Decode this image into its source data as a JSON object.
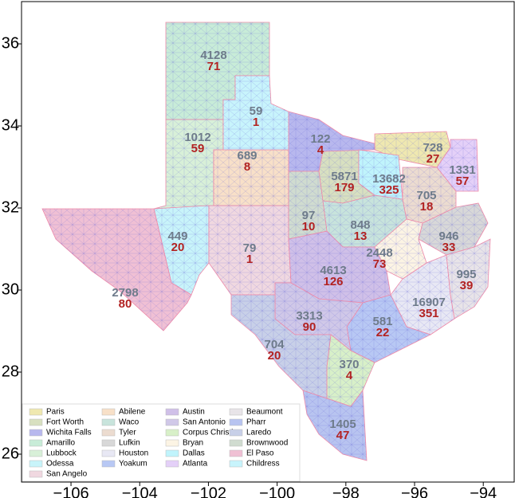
{
  "map": {
    "xlim": [
      -107.44,
      -93.1
    ],
    "ylim": [
      25.32,
      37.03
    ],
    "xticks": [
      {
        "value": -106,
        "label": "−106"
      },
      {
        "value": -104,
        "label": "−104"
      },
      {
        "value": -102,
        "label": "−102"
      },
      {
        "value": -100,
        "label": "−100"
      },
      {
        "value": -98,
        "label": "−98"
      },
      {
        "value": -96,
        "label": "−96"
      },
      {
        "value": -94,
        "label": "−94"
      }
    ],
    "yticks": [
      26,
      28,
      30,
      32,
      34,
      36
    ],
    "districts": [
      {
        "name": "Paris",
        "color": "#efe8b0",
        "values": [
          728,
          27
        ]
      },
      {
        "name": "Fort Worth",
        "color": "#d8e0c0",
        "values": [
          5871,
          179
        ]
      },
      {
        "name": "Wichita Falls",
        "color": "#b8b8ee",
        "values": [
          122,
          4
        ]
      },
      {
        "name": "Amarillo",
        "color": "#c8ecd8",
        "values": [
          4128,
          71
        ]
      },
      {
        "name": "Lubbock",
        "color": "#d8f0d8",
        "values": [
          1012,
          59
        ]
      },
      {
        "name": "Odessa",
        "color": "#c8f4fa",
        "values": [
          449,
          20
        ]
      },
      {
        "name": "San Angelo",
        "color": "#f0d8e0",
        "values": [
          79,
          1
        ]
      },
      {
        "name": "Abilene",
        "color": "#f8e0c8",
        "values": [
          689,
          8
        ]
      },
      {
        "name": "Waco",
        "color": "#c8e4dc",
        "values": [
          848,
          13
        ]
      },
      {
        "name": "Tyler",
        "color": "#ecdcd0",
        "values": [
          705,
          18
        ]
      },
      {
        "name": "Lufkin",
        "color": "#d8d8d8",
        "values": [
          946,
          33
        ]
      },
      {
        "name": "Houston",
        "color": "#e8e8f4",
        "values": [
          16907,
          351
        ]
      },
      {
        "name": "Yoakum",
        "color": "#b8c8f4",
        "values": [
          581,
          22
        ]
      },
      {
        "name": "Austin",
        "color": "#d0c0e8",
        "values": [
          4613,
          126
        ]
      },
      {
        "name": "San Antonio",
        "color": "#d0c8e8",
        "values": [
          3313,
          90
        ]
      },
      {
        "name": "Corpus Christi",
        "color": "#d8f0c8",
        "values": [
          370,
          4
        ]
      },
      {
        "name": "Bryan",
        "color": "#fcf4e4",
        "values": [
          2448,
          73
        ]
      },
      {
        "name": "Dallas",
        "color": "#c0f4fc",
        "values": [
          13682,
          325
        ]
      },
      {
        "name": "Atlanta",
        "color": "#e4d0f8",
        "values": [
          1331,
          57
        ]
      },
      {
        "name": "Beaumont",
        "color": "#e8e4e8",
        "values": [
          995,
          39
        ]
      },
      {
        "name": "Pharr",
        "color": "#b8c4f0",
        "values": [
          1405,
          47
        ]
      },
      {
        "name": "Laredo",
        "color": "#c8d0e8",
        "values": [
          704,
          20
        ]
      },
      {
        "name": "Brownwood",
        "color": "#d0dcd0",
        "values": [
          97,
          10
        ]
      },
      {
        "name": "El Paso",
        "color": "#f0c0d4",
        "values": [
          2798,
          80
        ]
      },
      {
        "name": "Childress",
        "color": "#c8f4fc",
        "values": [
          59,
          1
        ]
      }
    ]
  }
}
